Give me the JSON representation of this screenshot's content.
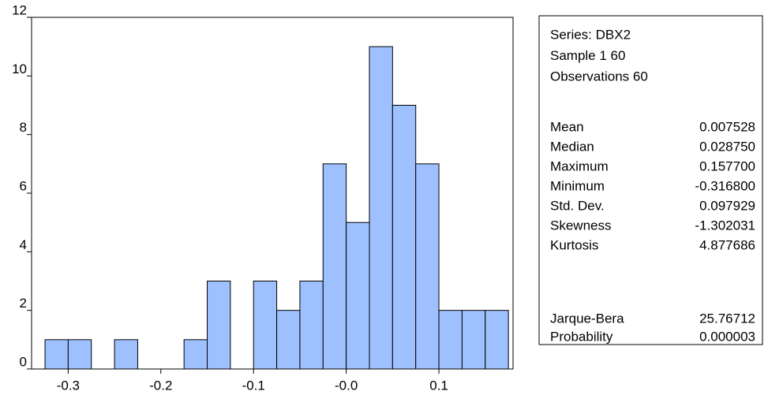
{
  "chart_data": {
    "type": "histogram",
    "bins": [
      -0.325,
      -0.3,
      -0.275,
      -0.25,
      -0.225,
      -0.2,
      -0.175,
      -0.15,
      -0.125,
      -0.1,
      -0.075,
      -0.05,
      -0.025,
      0,
      0.025,
      0.05,
      0.075,
      0.1,
      0.125,
      0.15,
      0.175
    ],
    "values": [
      1,
      1,
      0,
      1,
      0,
      0,
      1,
      3,
      0,
      3,
      2,
      3,
      7,
      5,
      11,
      9,
      7,
      2,
      2,
      2
    ],
    "color": "#9ec0ff",
    "xlim": [
      -0.3395,
      0.18
    ],
    "xticks": [
      -0.3,
      -0.2,
      -0.1,
      {
        "value": 0,
        "label": "-0.0"
      },
      0.1
    ],
    "ylim": [
      0,
      12
    ],
    "yticks": [
      0,
      2,
      4,
      6,
      8,
      10,
      12
    ],
    "stats_header": [
      "Series: DBX2",
      "Sample 1 60",
      "Observations 60"
    ],
    "stats": [
      {
        "label": "Mean",
        "value": "0.007528"
      },
      {
        "label": "Median",
        "value": "0.028750"
      },
      {
        "label": "Maximum",
        "value": "0.157700"
      },
      {
        "label": "Minimum",
        "value": "-0.316800"
      },
      {
        "label": "Std. Dev.",
        "value": "0.097929"
      },
      {
        "label": "Skewness",
        "value": "-1.302031"
      },
      {
        "label": "Kurtosis",
        "value": "4.877686"
      }
    ],
    "tests": [
      {
        "label": "Jarque-Bera",
        "value": "25.76712"
      },
      {
        "label": "Probability",
        "value": "0.000003"
      }
    ]
  }
}
